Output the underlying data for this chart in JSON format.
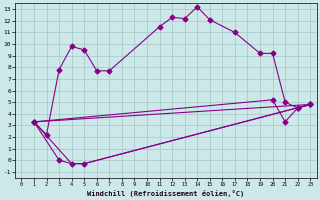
{
  "xlabel": "Windchill (Refroidissement éolien,°C)",
  "bg_color": "#cce8e8",
  "grid_color": "#aacccc",
  "line_color": "#880088",
  "xlim": [
    -0.5,
    23.5
  ],
  "ylim": [
    -1.5,
    13.5
  ],
  "xticks": [
    0,
    1,
    2,
    3,
    4,
    5,
    6,
    7,
    8,
    9,
    10,
    11,
    12,
    13,
    14,
    15,
    16,
    17,
    18,
    19,
    20,
    21,
    22,
    23
  ],
  "yticks": [
    -1,
    0,
    1,
    2,
    3,
    4,
    5,
    6,
    7,
    8,
    9,
    10,
    11,
    12,
    13
  ],
  "line1_x": [
    1,
    2,
    3,
    4,
    5,
    6,
    7,
    11,
    12,
    13,
    14,
    15,
    17,
    19,
    20,
    21,
    22,
    23
  ],
  "line1_y": [
    3.3,
    2.2,
    7.8,
    9.8,
    9.5,
    7.7,
    7.7,
    11.5,
    12.3,
    12.2,
    13.2,
    12.1,
    11.0,
    9.2,
    9.2,
    5.0,
    4.5,
    4.8
  ],
  "line2_x": [
    1,
    3,
    4,
    5,
    23
  ],
  "line2_y": [
    3.3,
    0.0,
    -0.3,
    -0.3,
    4.8
  ],
  "line3_x": [
    1,
    23
  ],
  "line3_y": [
    3.3,
    4.8
  ],
  "line4_x": [
    1,
    4,
    5,
    23
  ],
  "line4_y": [
    3.3,
    -0.3,
    -0.3,
    4.8
  ],
  "line5_x": [
    1,
    20,
    21,
    22,
    23
  ],
  "line5_y": [
    3.3,
    5.2,
    3.3,
    4.5,
    4.8
  ],
  "marker": "D",
  "markersize": 2.5,
  "linewidth": 0.8
}
